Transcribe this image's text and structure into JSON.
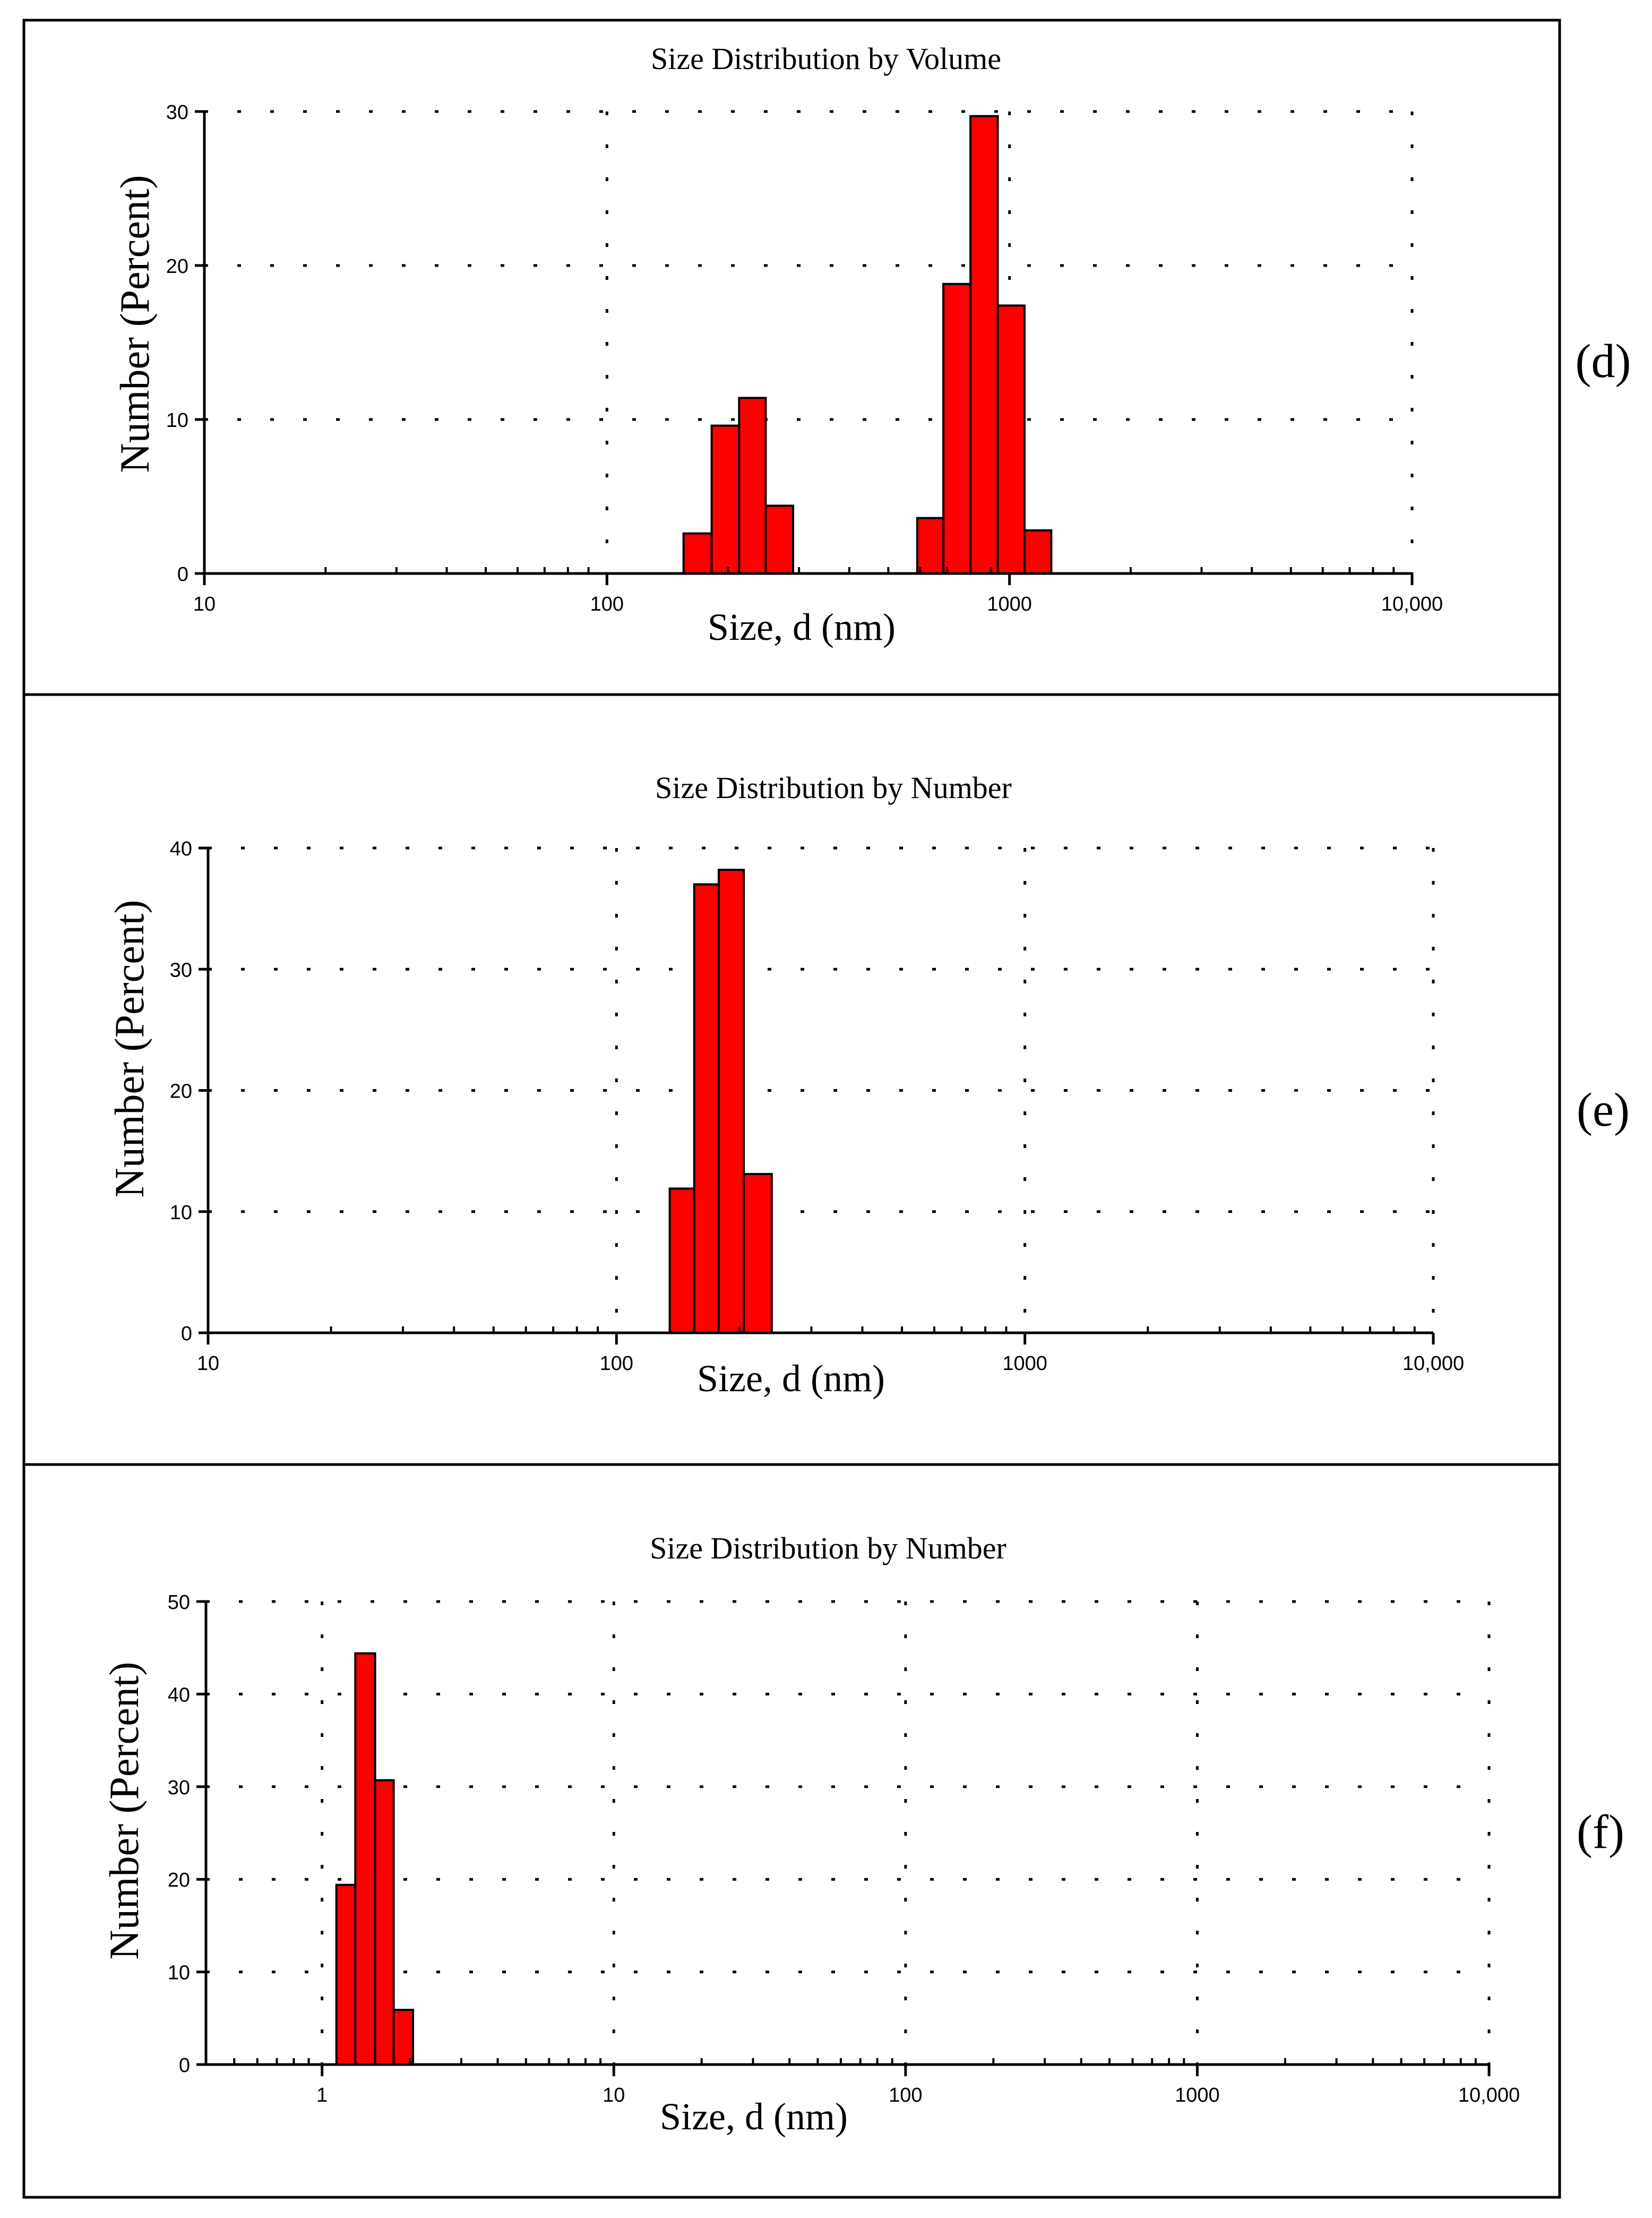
{
  "colors": {
    "bar_fill": "#ff0000",
    "bar_stroke": "#000000",
    "axis": "#000000",
    "grid": "#000000",
    "frame": "#000000",
    "background": "#ffffff"
  },
  "chart_data": [
    {
      "panel_label": "(d)",
      "type": "bar",
      "title": "Size Distribution by Volume",
      "xlabel": "Size, d (nm)",
      "ylabel": "Number (Percent)",
      "xscale": "log",
      "xlim": [
        10,
        10000
      ],
      "ylim": [
        0,
        30
      ],
      "xticks": [
        10,
        100,
        1000,
        10000
      ],
      "xtick_labels": [
        "10",
        "100",
        "1000",
        "10,000"
      ],
      "yticks": [
        0,
        10,
        20,
        30
      ],
      "ytick_labels": [
        "0",
        "10",
        "20",
        "30"
      ],
      "grid": true,
      "bars": [
        {
          "x0": 155,
          "x1": 182,
          "value": 2.6
        },
        {
          "x0": 182,
          "x1": 213,
          "value": 9.6
        },
        {
          "x0": 213,
          "x1": 248,
          "value": 11.4
        },
        {
          "x0": 248,
          "x1": 290,
          "value": 4.4
        },
        {
          "x0": 590,
          "x1": 685,
          "value": 3.6
        },
        {
          "x0": 685,
          "x1": 800,
          "value": 18.8
        },
        {
          "x0": 800,
          "x1": 935,
          "value": 29.7
        },
        {
          "x0": 935,
          "x1": 1090,
          "value": 17.4
        },
        {
          "x0": 1090,
          "x1": 1270,
          "value": 2.8
        }
      ]
    },
    {
      "panel_label": "(e)",
      "type": "bar",
      "title": "Size Distribution by Number",
      "xlabel": "Size, d (nm)",
      "ylabel": "Number (Percent)",
      "xscale": "log",
      "xlim": [
        10,
        10000
      ],
      "ylim": [
        0,
        40
      ],
      "xticks": [
        10,
        100,
        1000,
        10000
      ],
      "xtick_labels": [
        "10",
        "100",
        "1000",
        "10,000"
      ],
      "yticks": [
        0,
        10,
        20,
        30,
        40
      ],
      "ytick_labels": [
        "0",
        "10",
        "20",
        "30",
        "40"
      ],
      "grid": true,
      "bars": [
        {
          "x0": 135,
          "x1": 155,
          "value": 11.9
        },
        {
          "x0": 155,
          "x1": 178,
          "value": 37.0
        },
        {
          "x0": 178,
          "x1": 205,
          "value": 38.2
        },
        {
          "x0": 205,
          "x1": 240,
          "value": 13.1
        }
      ]
    },
    {
      "panel_label": "(f)",
      "type": "bar",
      "title": "Size Distribution by Number",
      "xlabel": "Size, d (nm)",
      "ylabel": "Number (Percent)",
      "xscale": "log",
      "xlim": [
        0.4,
        10000
      ],
      "ylim": [
        0,
        50
      ],
      "xticks": [
        1,
        10,
        100,
        1000,
        10000
      ],
      "xtick_labels": [
        "1",
        "10",
        "100",
        "1000",
        "10,000"
      ],
      "yticks": [
        0,
        10,
        20,
        30,
        40,
        50
      ],
      "ytick_labels": [
        "0",
        "10",
        "20",
        "30",
        "40",
        "50"
      ],
      "grid": true,
      "bars": [
        {
          "x0": 1.12,
          "x1": 1.3,
          "value": 19.4
        },
        {
          "x0": 1.3,
          "x1": 1.52,
          "value": 44.4
        },
        {
          "x0": 1.52,
          "x1": 1.76,
          "value": 30.7
        },
        {
          "x0": 1.76,
          "x1": 2.05,
          "value": 5.9
        }
      ]
    }
  ]
}
